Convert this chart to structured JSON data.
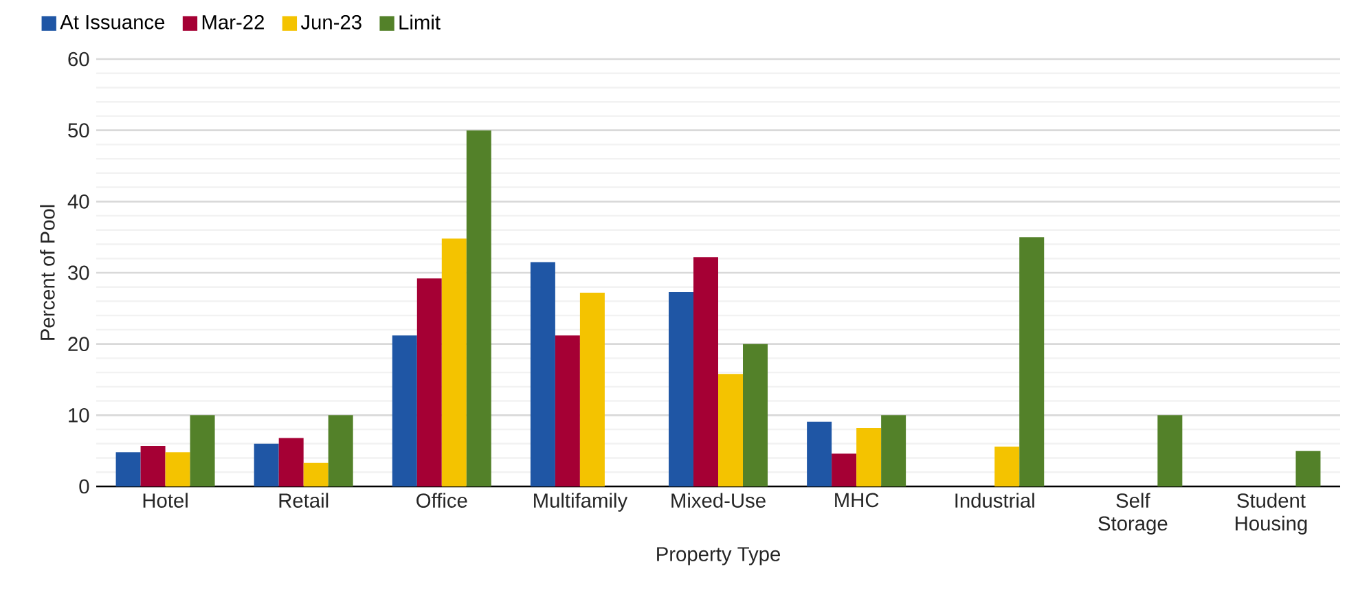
{
  "chart_data": {
    "type": "bar",
    "xlabel": "Property Type",
    "ylabel": "Percent of Pool",
    "categories": [
      "Hotel",
      "Retail",
      "Office",
      "Multifamily",
      "Mixed-Use",
      "MHC",
      "Industrial",
      "Self Storage",
      "Student Housing"
    ],
    "series": [
      {
        "name": "At Issuance",
        "color": "#1f56a5",
        "values": [
          4.8,
          6.0,
          21.2,
          31.5,
          27.3,
          9.1,
          null,
          null,
          null
        ]
      },
      {
        "name": "Mar-22",
        "color": "#a50034",
        "values": [
          5.7,
          6.8,
          29.2,
          21.2,
          32.2,
          4.6,
          null,
          null,
          null
        ]
      },
      {
        "name": "Jun-23",
        "color": "#f4c300",
        "values": [
          4.8,
          3.3,
          34.8,
          27.2,
          15.8,
          8.2,
          5.6,
          null,
          null
        ]
      },
      {
        "name": "Limit",
        "color": "#538129",
        "values": [
          10,
          10,
          50,
          null,
          20,
          10,
          35,
          10,
          5
        ]
      }
    ],
    "ylim": [
      0,
      60
    ],
    "yticks": [
      0,
      10,
      20,
      30,
      40,
      50,
      60
    ],
    "grid": "y",
    "legend": "top left"
  }
}
